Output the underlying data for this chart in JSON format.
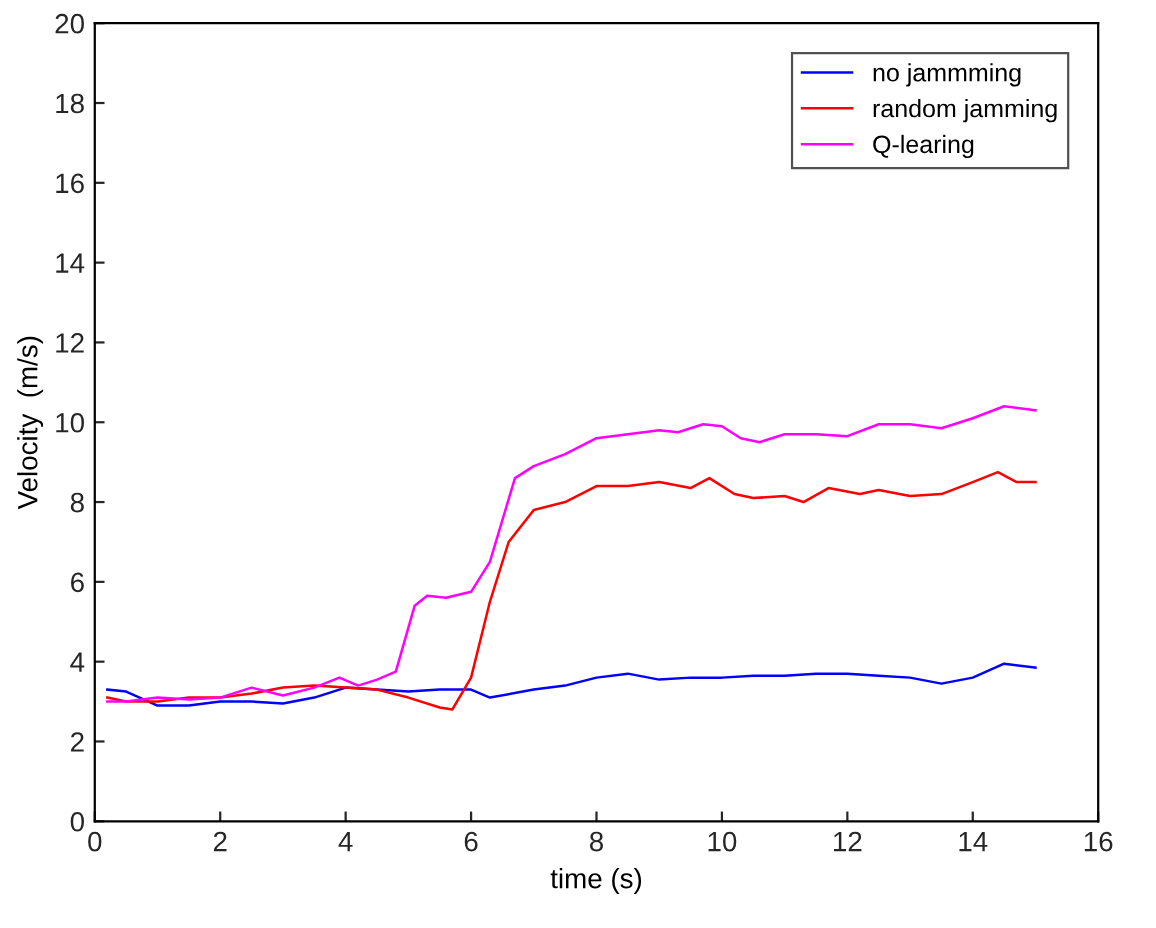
{
  "chart_data": {
    "type": "line",
    "xlabel": "time (s)",
    "ylabel": "Velocity  (m/s)",
    "xlim": [
      0,
      16
    ],
    "ylim": [
      0,
      20
    ],
    "xticks": [
      0,
      2,
      4,
      6,
      8,
      10,
      12,
      14,
      16
    ],
    "yticks": [
      0,
      2,
      4,
      6,
      8,
      10,
      12,
      14,
      16,
      18,
      20
    ],
    "grid": false,
    "legend": "top right",
    "marker": "none",
    "line_style": "solid",
    "series": [
      {
        "name": "no jammming",
        "color": "#0000ff",
        "x": [
          0.2,
          0.5,
          1,
          1.5,
          2,
          2.5,
          3,
          3.5,
          4,
          4.5,
          5,
          5.5,
          6,
          6.3,
          7,
          7.5,
          8,
          8.5,
          9,
          9.5,
          10,
          10.5,
          11,
          11.5,
          12,
          12.5,
          13,
          13.5,
          14,
          14.5,
          15
        ],
        "values": [
          3.3,
          3.25,
          2.9,
          2.9,
          3.0,
          3.0,
          2.95,
          3.1,
          3.35,
          3.3,
          3.25,
          3.3,
          3.3,
          3.1,
          3.3,
          3.4,
          3.6,
          3.7,
          3.55,
          3.6,
          3.6,
          3.65,
          3.65,
          3.7,
          3.7,
          3.65,
          3.6,
          3.45,
          3.6,
          3.95,
          3.85
        ]
      },
      {
        "name": "random jamming",
        "color": "#ff0000",
        "x": [
          0.2,
          0.5,
          1,
          1.5,
          2,
          2.5,
          3,
          3.5,
          4,
          4.5,
          5,
          5.5,
          5.7,
          6,
          6.3,
          6.6,
          7,
          7.5,
          8,
          8.5,
          9,
          9.5,
          9.8,
          10.2,
          10.5,
          11,
          11.3,
          11.7,
          12.2,
          12.5,
          13,
          13.5,
          14,
          14.4,
          14.7,
          15
        ],
        "values": [
          3.1,
          3.0,
          3.0,
          3.1,
          3.1,
          3.2,
          3.35,
          3.4,
          3.35,
          3.3,
          3.1,
          2.85,
          2.8,
          3.6,
          5.5,
          7.0,
          7.8,
          8.0,
          8.4,
          8.4,
          8.5,
          8.35,
          8.6,
          8.2,
          8.1,
          8.15,
          8.0,
          8.35,
          8.2,
          8.3,
          8.15,
          8.2,
          8.5,
          8.75,
          8.5,
          8.5
        ]
      },
      {
        "name": "Q-learing",
        "color": "#ff00ff",
        "x": [
          0.2,
          0.5,
          1,
          1.5,
          2,
          2.5,
          3,
          3.5,
          3.9,
          4.2,
          4.5,
          4.8,
          5.1,
          5.3,
          5.6,
          6,
          6.3,
          6.7,
          7,
          7.5,
          8,
          8.5,
          9,
          9.3,
          9.7,
          10,
          10.3,
          10.6,
          11,
          11.5,
          12,
          12.5,
          13,
          13.5,
          14,
          14.5,
          15
        ],
        "values": [
          3.0,
          3.0,
          3.1,
          3.05,
          3.1,
          3.35,
          3.15,
          3.35,
          3.6,
          3.4,
          3.55,
          3.75,
          5.4,
          5.65,
          5.6,
          5.75,
          6.5,
          8.6,
          8.9,
          9.2,
          9.6,
          9.7,
          9.8,
          9.75,
          9.95,
          9.9,
          9.6,
          9.5,
          9.7,
          9.7,
          9.65,
          9.95,
          9.95,
          9.85,
          10.1,
          10.4,
          10.3
        ]
      }
    ]
  }
}
